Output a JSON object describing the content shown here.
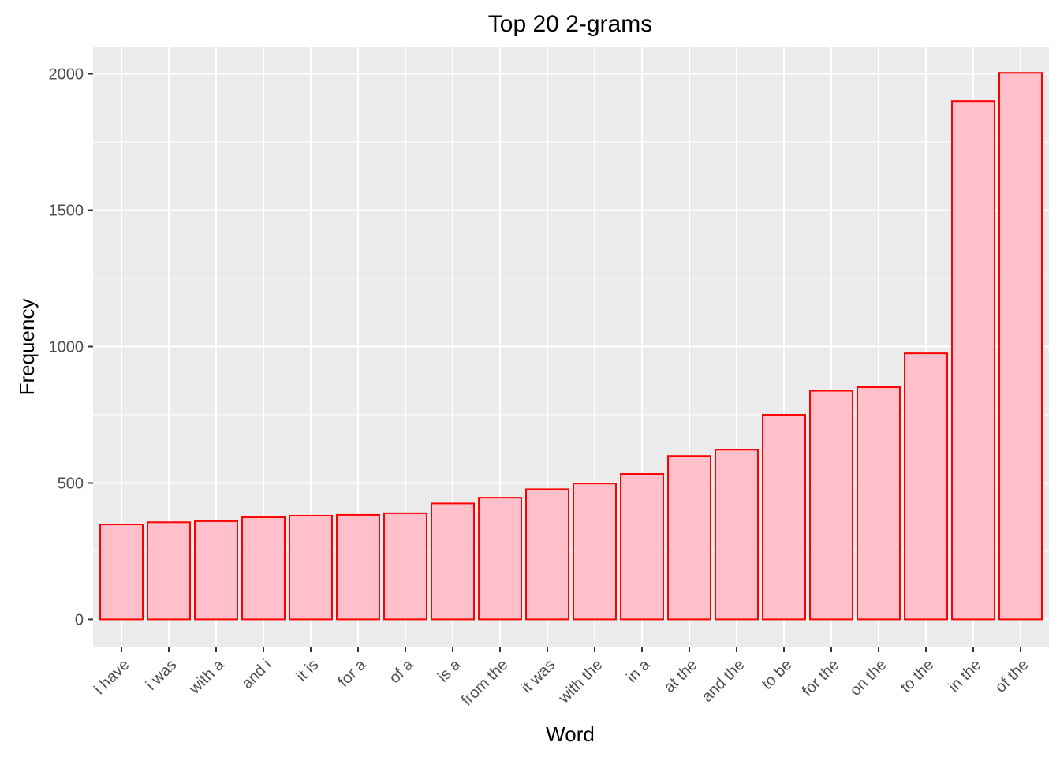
{
  "chart_data": {
    "type": "bar",
    "title": "Top 20 2-grams",
    "xlabel": "Word",
    "ylabel": "Frequency",
    "categories": [
      "i have",
      "i was",
      "with a",
      "and i",
      "it is",
      "for a",
      "of a",
      "is a",
      "from the",
      "it was",
      "with the",
      "in a",
      "at the",
      "and the",
      "to be",
      "for the",
      "on the",
      "to the",
      "in the",
      "of the"
    ],
    "values": [
      348,
      356,
      360,
      374,
      380,
      383,
      389,
      425,
      446,
      477,
      498,
      533,
      599,
      622,
      750,
      838,
      851,
      975,
      1900,
      2004
    ],
    "ylim": [
      -100,
      2100
    ],
    "yticks": [
      0,
      500,
      1000,
      1500,
      2000
    ],
    "grid": true,
    "colors": {
      "bar_fill": "#FFC0CB",
      "bar_stroke": "#FF0000",
      "panel_bg": "#EBEBEB",
      "grid": "#FFFFFF"
    }
  }
}
